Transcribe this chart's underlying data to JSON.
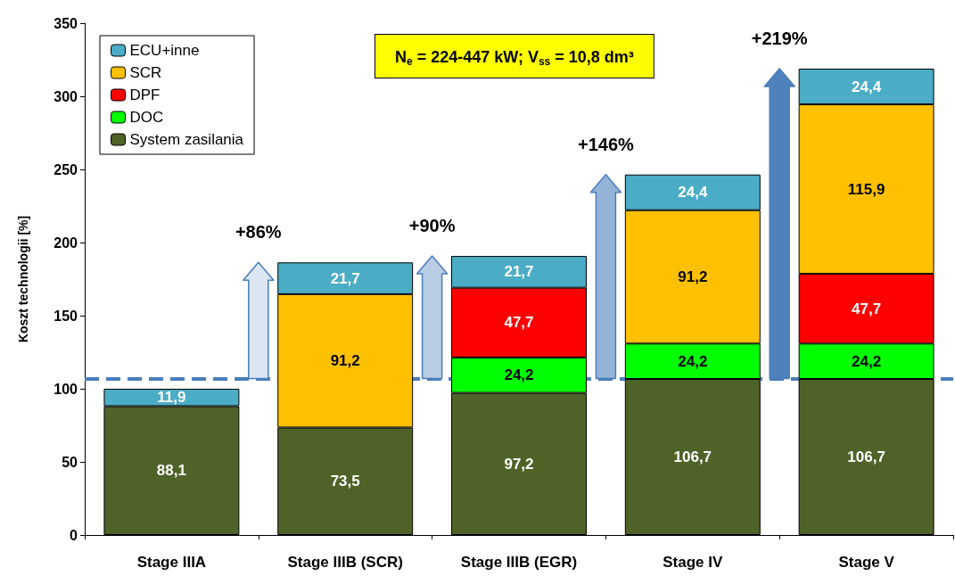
{
  "chart_data": {
    "type": "bar",
    "stacked": true,
    "ylabel": "Koszt technologii [%]",
    "categories": [
      "Stage IIIA",
      "Stage IIIB (SCR)",
      "Stage IIIB (EGR)",
      "Stage IV",
      "Stage V"
    ],
    "series": [
      {
        "name": "System zasilania",
        "color": "#4f6228",
        "values": [
          88.1,
          73.5,
          97.2,
          106.7,
          106.7
        ],
        "value_labels": [
          "88,1",
          "73,5",
          "97,2",
          "106,7",
          "106,7"
        ]
      },
      {
        "name": "DOC",
        "color": "#00ff00",
        "values": [
          null,
          null,
          24.2,
          24.2,
          24.2
        ],
        "value_labels": [
          null,
          null,
          "24,2",
          "24,2",
          "24,2"
        ]
      },
      {
        "name": "DPF",
        "color": "#ff0000",
        "values": [
          null,
          null,
          47.7,
          null,
          47.7
        ],
        "value_labels": [
          null,
          null,
          "47,7",
          null,
          "47,7"
        ]
      },
      {
        "name": "SCR",
        "color": "#ffc000",
        "values": [
          null,
          91.2,
          null,
          91.2,
          115.9
        ],
        "value_labels": [
          null,
          "91,2",
          null,
          "91,2",
          "115,9"
        ]
      },
      {
        "name": "ECU+inne",
        "color": "#4bacc6",
        "values": [
          11.9,
          21.7,
          21.7,
          24.4,
          24.4
        ],
        "value_labels": [
          "11,9",
          "21,7",
          "21,7",
          "24,4",
          "24,4"
        ]
      }
    ],
    "ylim": [
      0,
      350
    ],
    "yticks": [
      0,
      50,
      100,
      150,
      200,
      250,
      300,
      350
    ],
    "grid": false,
    "legend": "top left",
    "ref_lines": [
      {
        "axis": "y",
        "value": 107,
        "color": "#4a7ebb",
        "line_style": "dashed"
      }
    ],
    "annotations": [
      "N$_{e}$ = 224-447 kW; V$_{ss}$ = 10,8 dm³",
      "+86%",
      "+90%",
      "+146%",
      "+219%"
    ]
  }
}
